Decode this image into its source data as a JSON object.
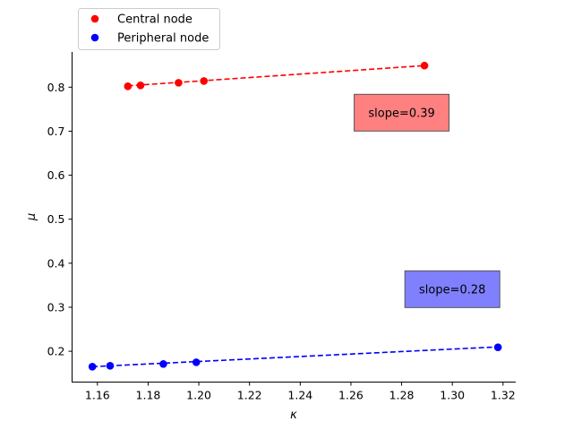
{
  "chart_data": {
    "type": "scatter",
    "title": "",
    "xlabel": "κ",
    "ylabel": "μ",
    "xlim": [
      1.15,
      1.325
    ],
    "ylim": [
      0.13,
      0.88
    ],
    "xticks": [
      1.16,
      1.18,
      1.2,
      1.22,
      1.24,
      1.26,
      1.28,
      1.3,
      1.32
    ],
    "yticks": [
      0.2,
      0.3,
      0.4,
      0.5,
      0.6,
      0.7,
      0.8
    ],
    "xtick_labels": [
      "1.16",
      "1.18",
      "1.20",
      "1.22",
      "1.24",
      "1.26",
      "1.28",
      "1.30",
      "1.32"
    ],
    "ytick_labels": [
      "0.2",
      "0.3",
      "0.4",
      "0.5",
      "0.6",
      "0.7",
      "0.8"
    ],
    "grid": false,
    "legend_position": "top-left, above plot",
    "series": [
      {
        "name": "Central node",
        "color": "#ff0000",
        "points": [
          [
            1.172,
            0.802
          ],
          [
            1.177,
            0.804
          ],
          [
            1.192,
            0.81
          ],
          [
            1.202,
            0.814
          ],
          [
            1.289,
            0.849
          ]
        ],
        "fit": [
          [
            1.172,
            0.803
          ],
          [
            1.289,
            0.849
          ]
        ]
      },
      {
        "name": "Peripheral node",
        "color": "#0000ff",
        "points": [
          [
            1.158,
            0.165
          ],
          [
            1.165,
            0.167
          ],
          [
            1.186,
            0.171
          ],
          [
            1.199,
            0.175
          ],
          [
            1.318,
            0.209
          ]
        ],
        "fit": [
          [
            1.158,
            0.165
          ],
          [
            1.318,
            0.21
          ]
        ]
      }
    ],
    "annotations": [
      {
        "text": "slope=0.39",
        "x": 1.28,
        "y": 0.742,
        "bg": "#ff8080"
      },
      {
        "text": "slope=0.28",
        "x": 1.3,
        "y": 0.341,
        "bg": "#8080ff"
      }
    ]
  }
}
